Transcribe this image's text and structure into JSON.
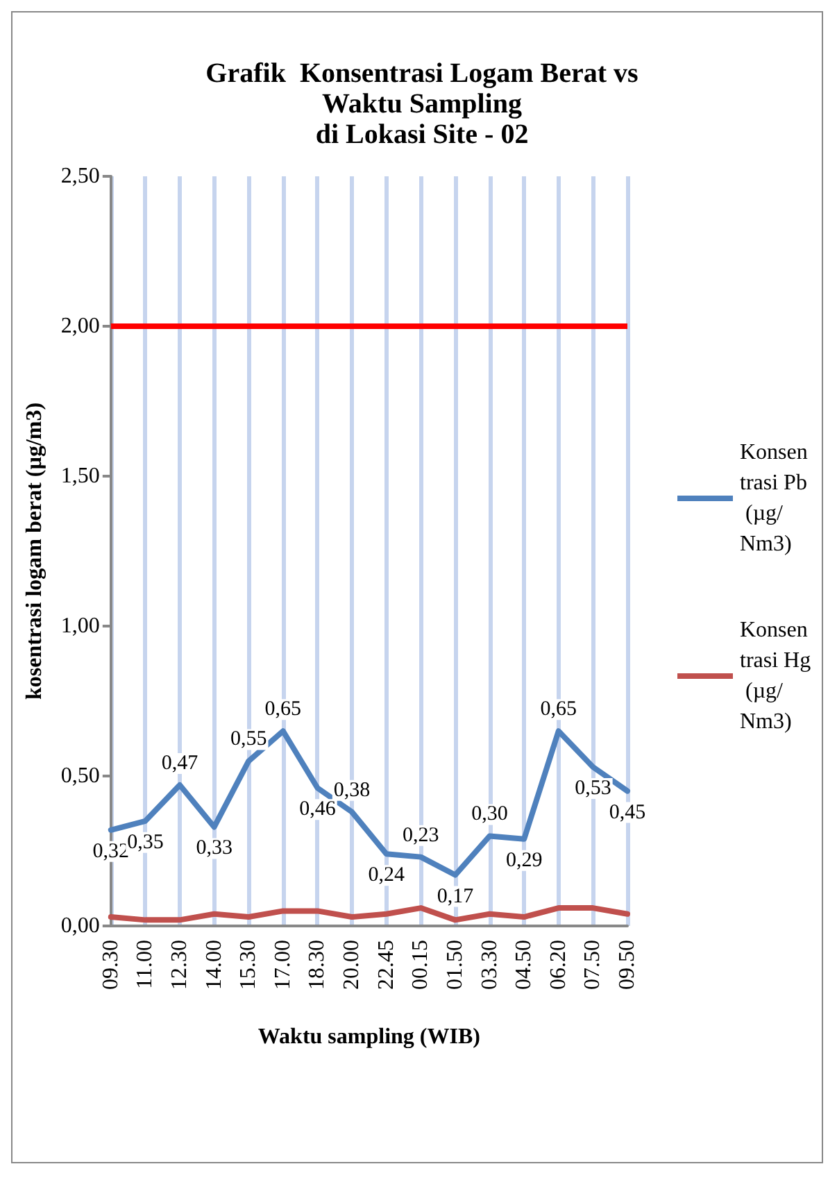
{
  "chart_data": {
    "type": "line",
    "title": "Grafik  Konsentrasi Logam Berat vs\nWaktu Sampling\ndi Lokasi Site - 02",
    "xlabel": "Waktu sampling (WIB)",
    "ylabel": "kosentrasi logam berat (µg/m3)",
    "categories": [
      "09.30",
      "11.00",
      "12.30",
      "14.00",
      "15.30",
      "17.00",
      "18.30",
      "20.00",
      "22.45",
      "00.15",
      "01.50",
      "03.30",
      "04.50",
      "06.20",
      "07.50",
      "09.50"
    ],
    "series": [
      {
        "name": "Konsentrasi Pb (µg/Nm3)",
        "color": "#4f81bd",
        "values": [
          0.32,
          0.35,
          0.47,
          0.33,
          0.55,
          0.65,
          0.46,
          0.38,
          0.24,
          0.23,
          0.17,
          0.3,
          0.29,
          0.65,
          0.53,
          0.45
        ],
        "value_labels": [
          "0,32",
          "0,35",
          "0,47",
          "0,33",
          "0,55",
          "0,65",
          "0,46",
          "0,38",
          "0,24",
          "0,23",
          "0,17",
          "0,30",
          "0,29",
          "0,65",
          "0,53",
          "0,45"
        ]
      },
      {
        "name": "Konsentrasi Hg (µg/Nm3)",
        "color": "#c0504d",
        "values": [
          0.03,
          0.02,
          0.02,
          0.04,
          0.03,
          0.05,
          0.05,
          0.03,
          0.04,
          0.06,
          0.02,
          0.04,
          0.03,
          0.06,
          0.06,
          0.04
        ]
      }
    ],
    "ylim": [
      0,
      2.5
    ],
    "yticks": [
      {
        "value": 0,
        "label": "0,00"
      },
      {
        "value": 0.5,
        "label": "0,50"
      },
      {
        "value": 1,
        "label": "1,00"
      },
      {
        "value": 1.5,
        "label": "1,50"
      },
      {
        "value": 2,
        "label": "2,00"
      },
      {
        "value": 2.5,
        "label": "2,50"
      }
    ],
    "ref_lines": [
      {
        "axis": "y",
        "value": 2,
        "color": "#ff0000"
      }
    ],
    "grid": "x",
    "legend": "right",
    "marker": "none",
    "line_style": "solid"
  }
}
